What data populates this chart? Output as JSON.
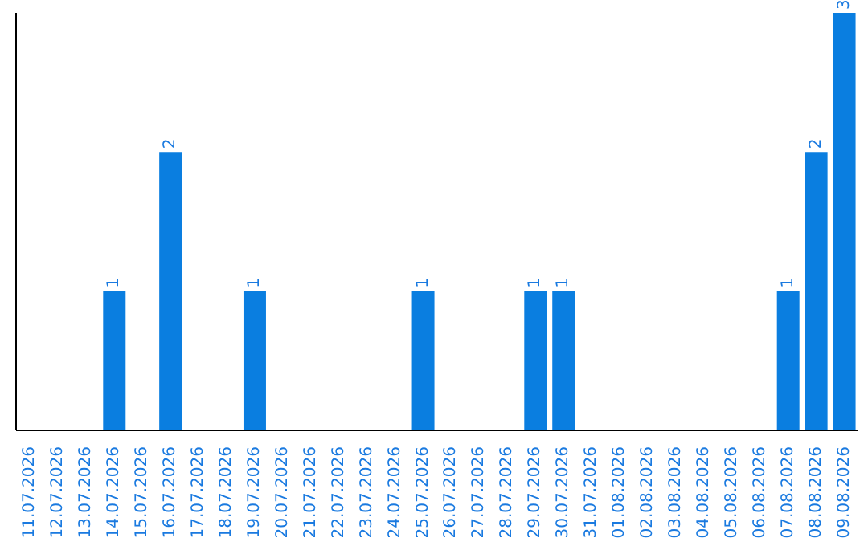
{
  "chart_data": {
    "type": "bar",
    "categories": [
      "11.07.2026",
      "12.07.2026",
      "13.07.2026",
      "14.07.2026",
      "15.07.2026",
      "16.07.2026",
      "17.07.2026",
      "18.07.2026",
      "19.07.2026",
      "20.07.2026",
      "21.07.2026",
      "22.07.2026",
      "23.07.2026",
      "24.07.2026",
      "25.07.2026",
      "26.07.2026",
      "27.07.2026",
      "28.07.2026",
      "29.07.2026",
      "30.07.2026",
      "31.07.2026",
      "01.08.2026",
      "02.08.2026",
      "03.08.2026",
      "04.08.2026",
      "05.08.2026",
      "06.08.2026",
      "07.08.2026",
      "08.08.2026",
      "09.08.2026"
    ],
    "values": [
      0,
      0,
      0,
      1,
      0,
      2,
      0,
      0,
      1,
      0,
      0,
      0,
      0,
      0,
      1,
      0,
      0,
      0,
      1,
      1,
      0,
      0,
      0,
      0,
      0,
      0,
      0,
      1,
      2,
      3
    ],
    "value_labels": [
      null,
      null,
      null,
      "1",
      null,
      "2",
      null,
      null,
      "1",
      null,
      null,
      null,
      null,
      null,
      "1",
      null,
      null,
      null,
      "1",
      "1",
      null,
      null,
      null,
      null,
      null,
      null,
      null,
      "1",
      "2",
      "3"
    ],
    "color": "#0a7ee0"
  }
}
